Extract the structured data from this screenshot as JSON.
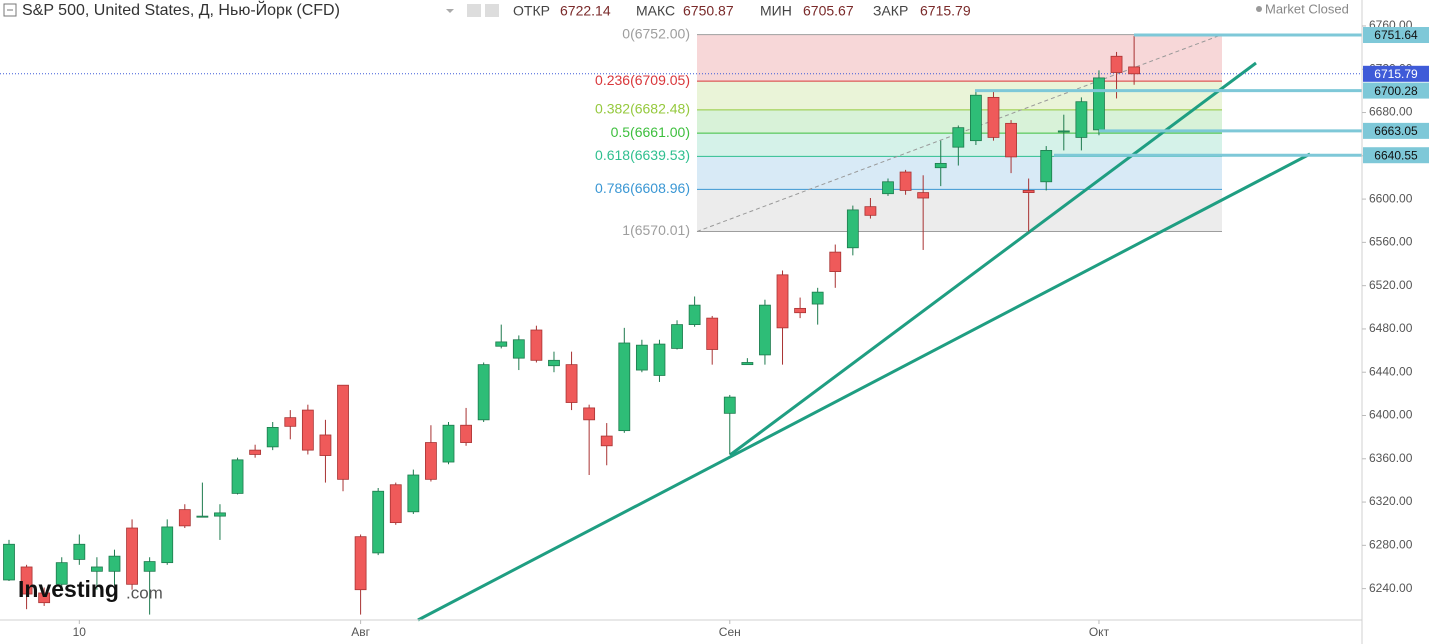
{
  "header": {
    "title": "S&P 500, United States, Д, Нью-Йорк (CFD)",
    "ohlc": [
      {
        "label": "ОТКР",
        "value": 6722.14
      },
      {
        "label": "МАКС",
        "value": 6750.87
      },
      {
        "label": "МИН",
        "value": 6705.67
      },
      {
        "label": "ЗАКР",
        "value": 6715.79
      }
    ],
    "status": "Market Closed"
  },
  "watermark": {
    "brand": "Investing",
    "suffix": ".com"
  },
  "chart_data": {
    "type": "candlestick",
    "categories": [
      null,
      null,
      null,
      null,
      "10",
      null,
      null,
      null,
      null,
      null,
      null,
      null,
      null,
      null,
      null,
      null,
      null,
      null,
      null,
      null,
      "Авг",
      null,
      null,
      null,
      null,
      null,
      null,
      null,
      null,
      null,
      null,
      null,
      null,
      null,
      null,
      null,
      null,
      null,
      null,
      null,
      null,
      "Сен",
      null,
      null,
      null,
      null,
      null,
      null,
      null,
      null,
      null,
      null,
      null,
      null,
      null,
      null,
      null,
      null,
      null,
      null,
      null,
      null,
      "Окт",
      null,
      null
    ],
    "open": [
      6248,
      6260,
      6236,
      6244,
      6267,
      6256,
      6256,
      6296,
      6256,
      6264,
      6313,
      6306,
      6307,
      6328,
      6368,
      6371,
      6398,
      6405,
      6382,
      6428,
      6288,
      6273,
      6336,
      6311,
      6375,
      6357,
      6391,
      6396,
      6464,
      6453,
      6479,
      6446,
      6447,
      6407,
      6381,
      6386,
      6442,
      6437,
      6462,
      6484,
      6490,
      6402,
      6447,
      6456,
      6530,
      6499,
      6503,
      6551,
      6555,
      6593,
      6605,
      6625,
      6606,
      6629,
      6648,
      6654,
      6694,
      6670,
      6608,
      6616,
      6662,
      6657,
      6664,
      6732,
      6722.14
    ],
    "high": [
      6285,
      6262,
      6241,
      6269,
      6290,
      6269,
      6276,
      6304,
      6269,
      6304,
      6318,
      6338,
      6318,
      6361,
      6373,
      6394,
      6405,
      6410,
      6396,
      6428,
      6290,
      6333,
      6338,
      6350,
      6391,
      6394,
      6407,
      6449,
      6484,
      6474,
      6483,
      6459,
      6459,
      6410,
      6393,
      6481,
      6470,
      6470,
      6488,
      6510,
      6492,
      6419,
      6453,
      6507,
      6534,
      6509,
      6518,
      6558,
      6594,
      6601,
      6619,
      6627,
      6622,
      6654,
      6668,
      6701,
      6701,
      6673,
      6619,
      6649,
      6678,
      6694,
      6719,
      6736,
      6750.87
    ],
    "low": [
      6247,
      6221,
      6224,
      6239,
      6262,
      6239,
      6243,
      6239,
      6216,
      6262,
      6296,
      6306,
      6285,
      6327,
      6361,
      6368,
      6378,
      6364,
      6338,
      6330,
      6216,
      6271,
      6299,
      6309,
      6339,
      6355,
      6372,
      6394,
      6462,
      6442,
      6449,
      6440,
      6405,
      6345,
      6354,
      6384,
      6440,
      6431,
      6461,
      6482,
      6447,
      6364,
      6447,
      6447,
      6447,
      6490,
      6484,
      6518,
      6548,
      6582,
      6603,
      6604,
      6553,
      6612,
      6631,
      6650,
      6654,
      6624,
      6570,
      6608,
      6645,
      6645,
      6659,
      6693,
      6705.67
    ],
    "close": [
      6281,
      6235,
      6227,
      6264,
      6281,
      6260,
      6270,
      6244,
      6265,
      6297,
      6298,
      6307,
      6310,
      6359,
      6364,
      6389,
      6390,
      6368,
      6363,
      6341,
      6239,
      6330,
      6301,
      6345,
      6341,
      6391,
      6375,
      6447,
      6468,
      6470,
      6451,
      6451,
      6412,
      6396,
      6372,
      6467,
      6465,
      6466,
      6484,
      6502,
      6461,
      6417,
      6449,
      6502,
      6481,
      6495,
      6514,
      6533,
      6590,
      6585,
      6616,
      6608,
      6601,
      6633,
      6666,
      6696,
      6657,
      6639,
      6606,
      6645,
      6663,
      6690,
      6712,
      6717,
      6715.79
    ],
    "up_color": "#2ebd77",
    "down_color": "#ef5a5a",
    "ylim": [
      6211,
      6784
    ],
    "yticks": [
      {
        "value": 6240,
        "label": "6240.00"
      },
      {
        "value": 6280,
        "label": "6280.00"
      },
      {
        "value": 6320,
        "label": "6320.00"
      },
      {
        "value": 6360,
        "label": "6360.00"
      },
      {
        "value": 6400,
        "label": "6400.00"
      },
      {
        "value": 6440,
        "label": "6440.00"
      },
      {
        "value": 6480,
        "label": "6480.00"
      },
      {
        "value": 6520,
        "label": "6520.00"
      },
      {
        "value": 6560,
        "label": "6560.00"
      },
      {
        "value": 6600,
        "label": "6600.00"
      },
      {
        "value": 6640,
        "label": "6640.00"
      },
      {
        "value": 6680,
        "label": "6680.00"
      },
      {
        "value": 6720,
        "label": "6720.00"
      },
      {
        "value": 6760,
        "label": "6760.00"
      }
    ],
    "fib_levels": [
      {
        "label": "0(6752.00)",
        "value": 6752.0,
        "color": "#9e9e9e"
      },
      {
        "label": "0.236(6709.05)",
        "value": 6709.05,
        "color": "#d9373b"
      },
      {
        "label": "0.382(6682.48)",
        "value": 6682.48,
        "color": "#95c93d"
      },
      {
        "label": "0.5(6661.00)",
        "value": 6661.0,
        "color": "#3dbf3d"
      },
      {
        "label": "0.618(6639.53)",
        "value": 6639.53,
        "color": "#2fbf8f"
      },
      {
        "label": "0.786(6608.96)",
        "value": 6608.96,
        "color": "#3a97d4"
      },
      {
        "label": "1(6570.01)",
        "value": 6570.01,
        "color": "#9e9e9e"
      }
    ],
    "price_lines": [
      {
        "value": 6751.64,
        "color": "#7ec8d8"
      },
      {
        "value": 6700.28,
        "color": "#7ec8d8"
      },
      {
        "value": 6663.05,
        "color": "#7ec8d8"
      },
      {
        "value": 6640.55,
        "color": "#7ec8d8"
      }
    ],
    "last_price": {
      "value": 6715.79,
      "color": "#3f5bd8"
    }
  }
}
